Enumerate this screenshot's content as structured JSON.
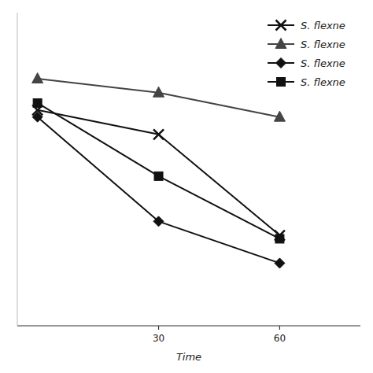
{
  "chart_data": {
    "type": "line",
    "xlabel": "Time",
    "x": [
      0,
      30,
      60
    ],
    "series": [
      {
        "name": "S. flexne",
        "color": "#111111",
        "marker": "x",
        "values": [
          9.1,
          8.75,
          7.3
        ]
      },
      {
        "name": "S. flexne",
        "color": "#444444",
        "marker": "triangle",
        "values": [
          9.55,
          9.35,
          9.0
        ]
      },
      {
        "name": "S. flexne",
        "color": "#111111",
        "marker": "diamond",
        "values": [
          9.0,
          7.5,
          6.9
        ]
      },
      {
        "name": "S. flexne",
        "color": "#111111",
        "marker": "square",
        "values": [
          9.2,
          8.15,
          7.25
        ]
      }
    ],
    "xlim": [
      -5,
      80
    ],
    "ylim": [
      6.0,
      10.5
    ],
    "xticks": [
      30,
      60
    ],
    "tick_labels": "x",
    "legend": "upper right"
  }
}
